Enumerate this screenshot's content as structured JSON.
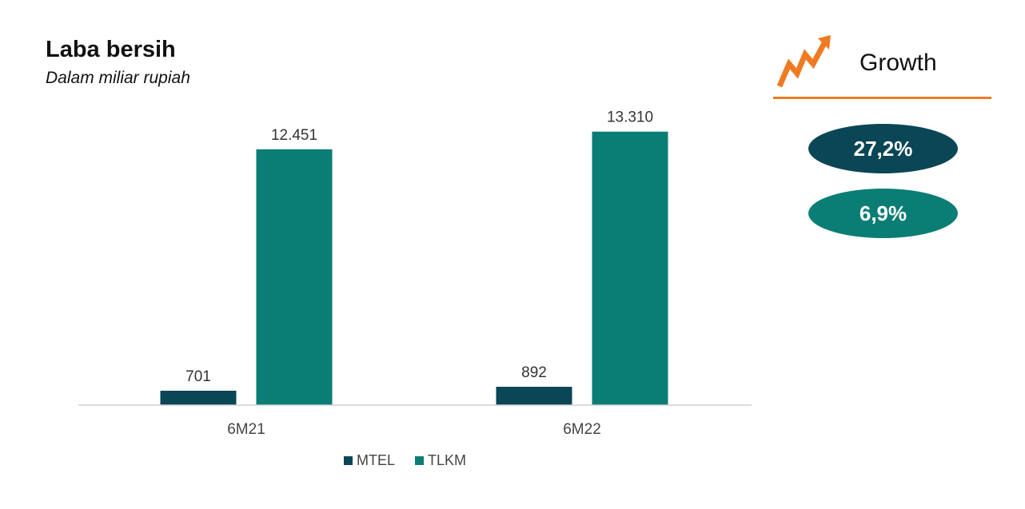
{
  "header": {
    "title": "Laba bersih",
    "subtitle": "Dalam miliar rupiah"
  },
  "growth": {
    "title": "Growth",
    "icon": "trend-up-arrow-icon",
    "accent_color": "#f07a22",
    "items": [
      {
        "label": "27,2%",
        "color": "#0a4655"
      },
      {
        "label": "6,9%",
        "color": "#0a7d74"
      }
    ]
  },
  "chart_data": {
    "type": "bar",
    "categories": [
      "6M21",
      "6M22"
    ],
    "series": [
      {
        "name": "MTEL",
        "values": [
          701,
          892
        ],
        "labels": [
          "701",
          "892"
        ],
        "color": "#0a4655"
      },
      {
        "name": "TLKM",
        "values": [
          12451,
          13310
        ],
        "labels": [
          "12.451",
          "13.310"
        ],
        "color": "#0a7d74"
      }
    ],
    "ylim": [
      0,
      14000
    ],
    "grid": false,
    "legend": "bottom"
  }
}
